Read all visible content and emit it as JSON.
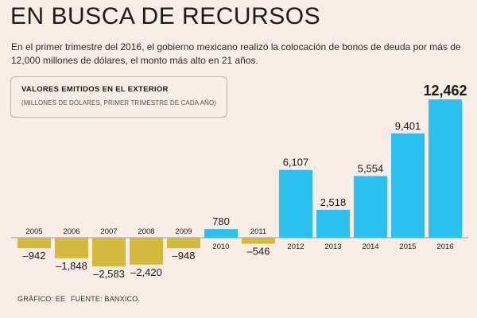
{
  "title": "EN BUSCA DE RECURSOS",
  "subtitle": "En el primer trimestre del 2016, el gobierno mexicano realizó la colocación de bonos de deuda por más de 12,000 millones de dólares, el monto más alto en 21 años.",
  "box": {
    "title": "VALORES EMITIDOS EN EL EXTERIOR",
    "subtitle": "(MILLONES DE DÓLARES, PRIMER TRIMESTRE DE CADA AÑO)"
  },
  "source": {
    "graphic": "GRÁFICO: EE",
    "source": "FUENTE: BANXICO."
  },
  "colors": {
    "positive": "#2CC0F0",
    "negative": "#D4B93F",
    "background": "#F7ECE6",
    "baseline": "#9A9A9A"
  },
  "chart_data": {
    "type": "bar",
    "title": "VALORES EMITIDOS EN EL EXTERIOR",
    "subtitle": "(MILLONES DE DÓLARES, PRIMER TRIMESTRE DE CADA AÑO)",
    "xlabel": "",
    "ylabel": "Millones de dólares",
    "grid": false,
    "categories": [
      "2005",
      "2006",
      "2007",
      "2008",
      "2009",
      "2010",
      "2011",
      "2012",
      "2013",
      "2014",
      "2015",
      "2016"
    ],
    "values": [
      -942,
      -1848,
      -2583,
      -2420,
      -948,
      780,
      -546,
      6107,
      2518,
      5554,
      9401,
      12462
    ],
    "value_labels": [
      "–942",
      "–1,848",
      "–2,583",
      "–2,420",
      "–948",
      "780",
      "–546",
      "6,107",
      "2,518",
      "5,554",
      "9,401",
      "12,462"
    ],
    "highlight": "2016",
    "ylim": [
      -2583,
      12462
    ]
  }
}
